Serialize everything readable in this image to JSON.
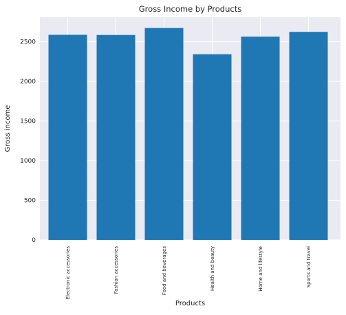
{
  "chart_data": {
    "type": "bar",
    "title": "Gross Income by Products",
    "xlabel": "Products",
    "ylabel": "Gross income",
    "categories": [
      "Electronic accessories",
      "Fashion accessories",
      "Food and beverages",
      "Health and beauty",
      "Home and lifestyle",
      "Sports and travel"
    ],
    "values": [
      2588,
      2586,
      2674,
      2343,
      2565,
      2625
    ],
    "ylim": [
      0,
      2810
    ],
    "yticks": [
      0,
      500,
      1000,
      1500,
      2000,
      2500
    ],
    "grid": true,
    "bar_color": "#1f77b4",
    "background_color": "#eaeaf2"
  }
}
